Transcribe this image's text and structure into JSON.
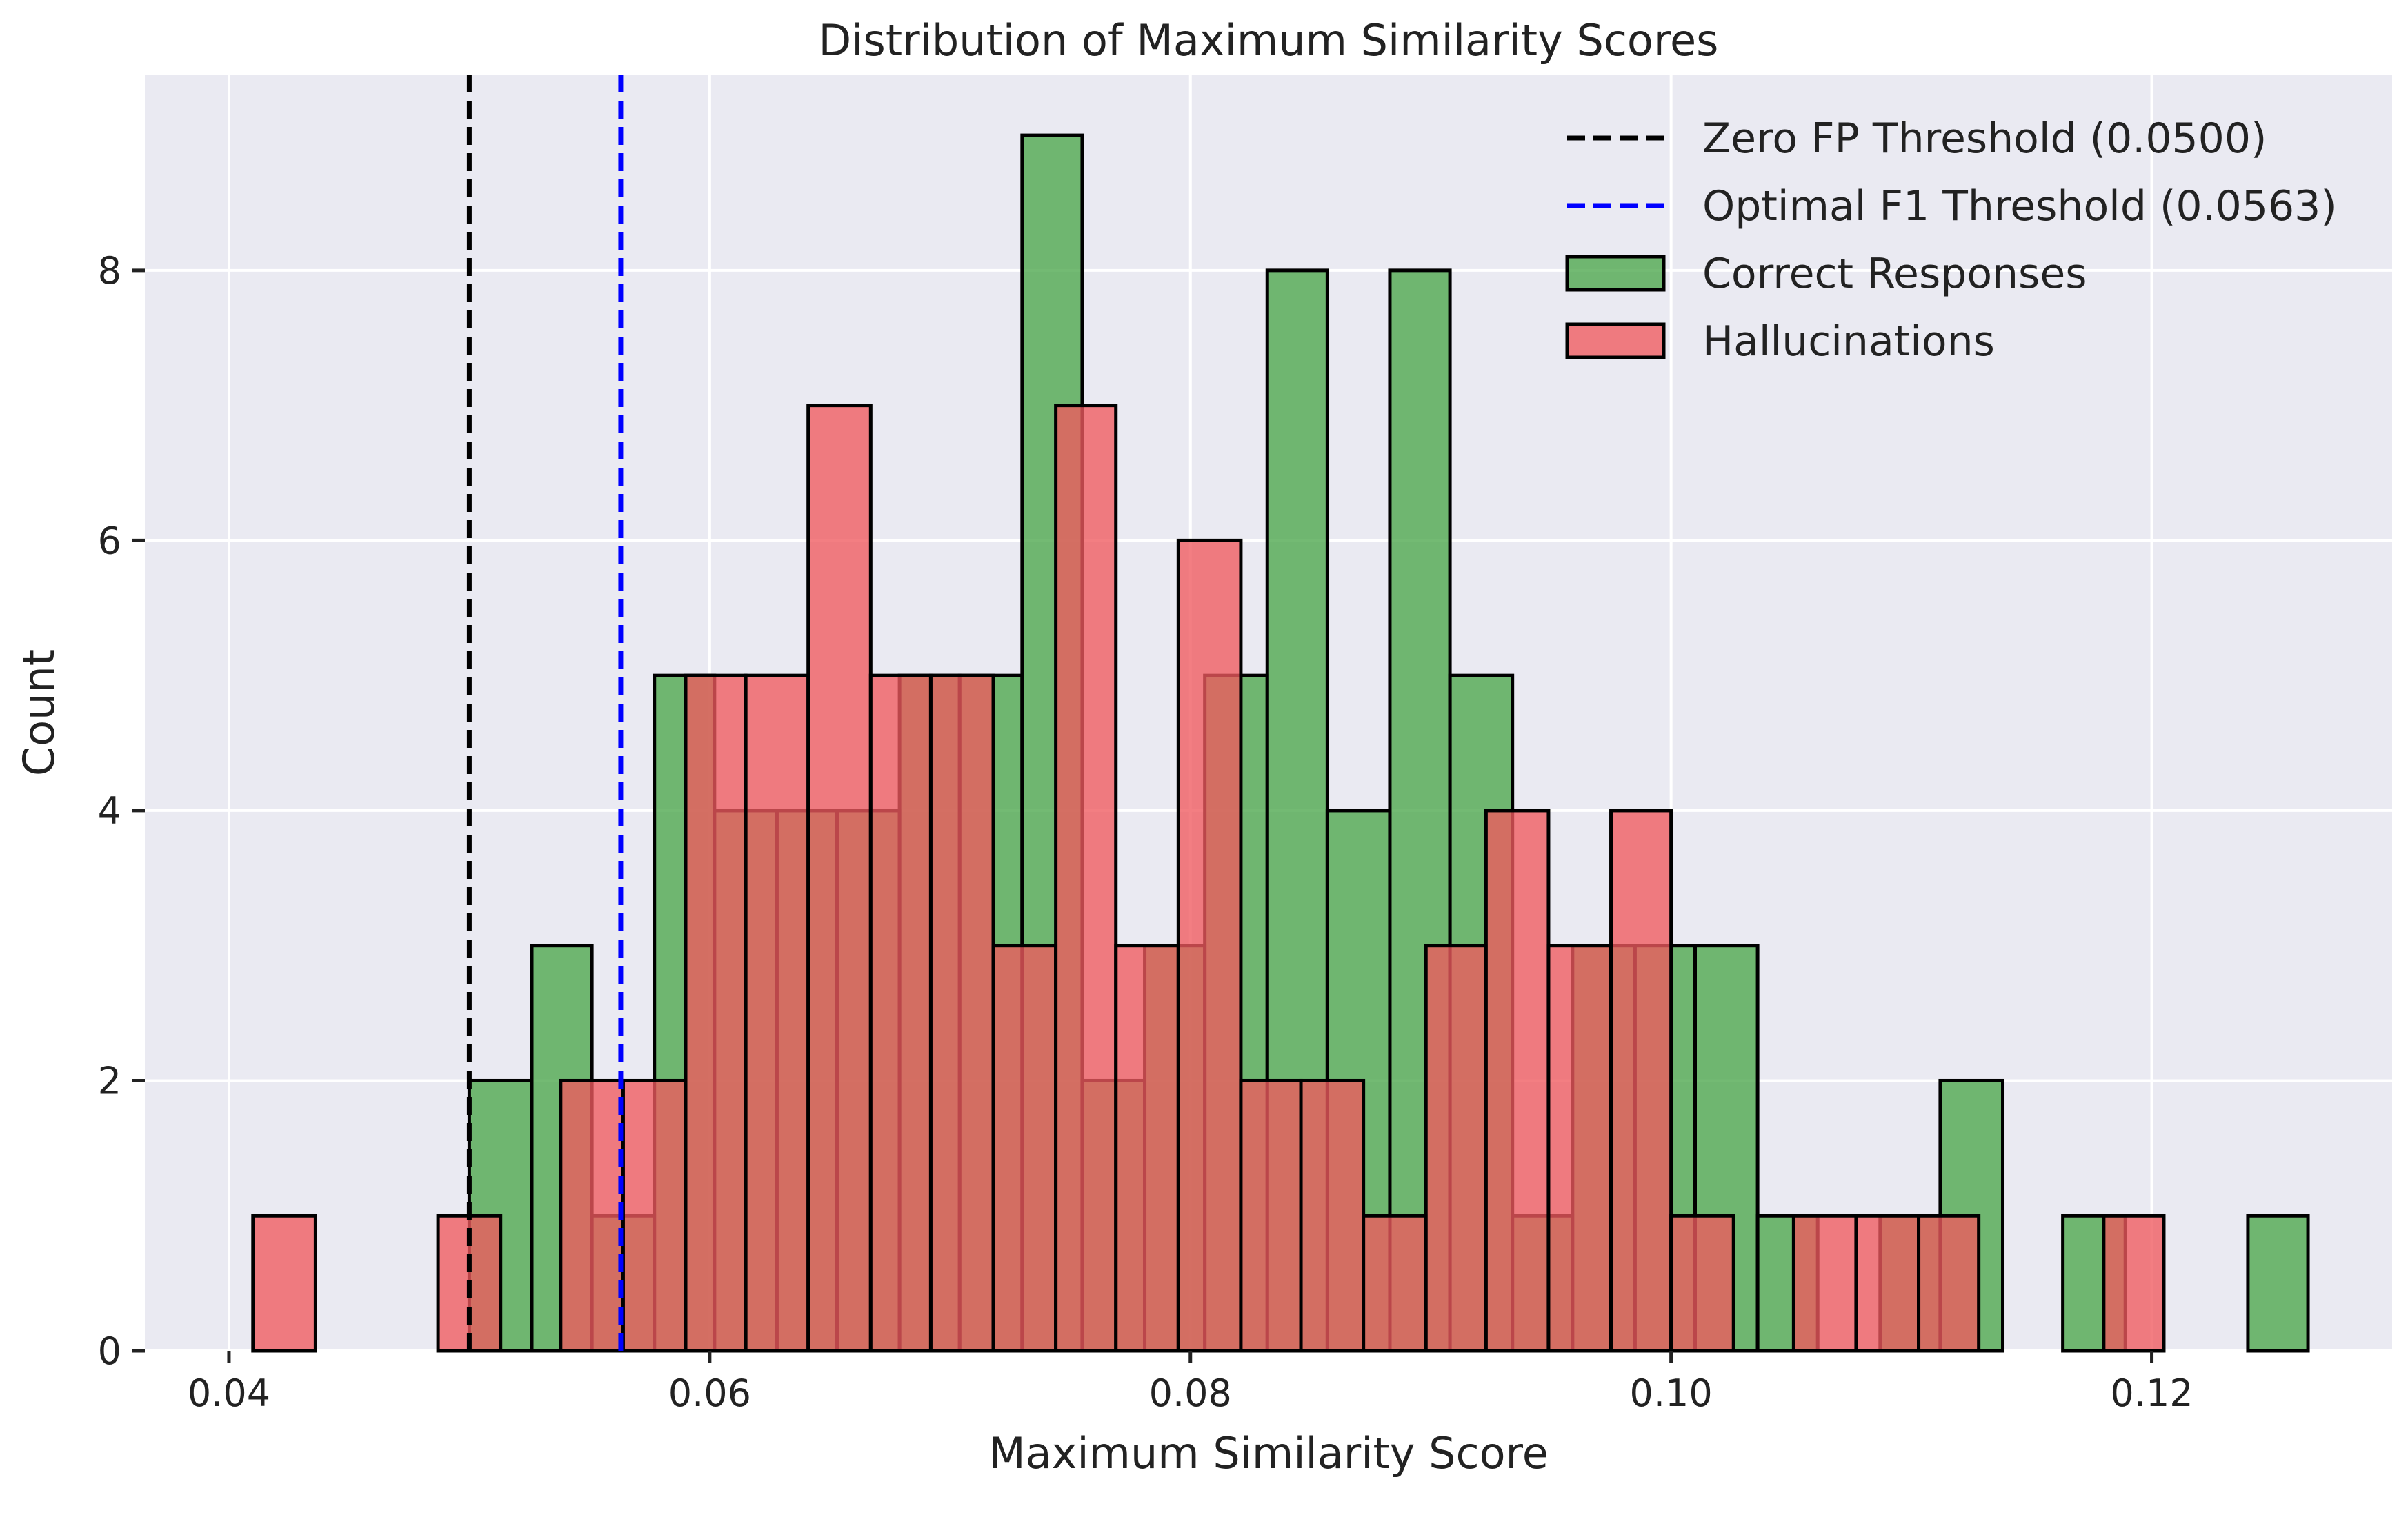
{
  "chart_data": {
    "type": "histogram",
    "title": "Distribution of Maximum Similarity Scores",
    "xlabel": "Maximum Similarity Score",
    "ylabel": "Count",
    "xlim": [
      0.0365,
      0.13
    ],
    "ylim": [
      0,
      9.45
    ],
    "x_ticks": [
      0.04,
      0.06,
      0.08,
      0.1,
      0.12
    ],
    "x_tick_labels": [
      "0.04",
      "0.06",
      "0.08",
      "0.10",
      "0.12"
    ],
    "y_ticks": [
      0,
      2,
      4,
      6,
      8
    ],
    "y_tick_labels": [
      "0",
      "2",
      "4",
      "6",
      "8"
    ],
    "grid": true,
    "legend_position": "top-right",
    "thresholds": [
      {
        "name": "Zero FP Threshold (0.0500)",
        "value": 0.05,
        "color": "#000000",
        "style": "dashed"
      },
      {
        "name": "Optimal F1 Threshold (0.0563)",
        "value": 0.0563,
        "color": "#0000ff",
        "style": "dashed"
      }
    ],
    "series": [
      {
        "name": "Correct Responses",
        "color": "#4ca64c",
        "bins": [
          {
            "x0": 0.05,
            "x1": 0.0526,
            "count": 2
          },
          {
            "x0": 0.0526,
            "x1": 0.0551,
            "count": 3
          },
          {
            "x0": 0.0551,
            "x1": 0.0577,
            "count": 1
          },
          {
            "x0": 0.0577,
            "x1": 0.0602,
            "count": 5
          },
          {
            "x0": 0.0602,
            "x1": 0.0628,
            "count": 4
          },
          {
            "x0": 0.0628,
            "x1": 0.0653,
            "count": 4
          },
          {
            "x0": 0.0653,
            "x1": 0.0679,
            "count": 4
          },
          {
            "x0": 0.0679,
            "x1": 0.0704,
            "count": 5
          },
          {
            "x0": 0.0704,
            "x1": 0.073,
            "count": 5
          },
          {
            "x0": 0.073,
            "x1": 0.0755,
            "count": 9
          },
          {
            "x0": 0.0755,
            "x1": 0.0781,
            "count": 2
          },
          {
            "x0": 0.0781,
            "x1": 0.0806,
            "count": 3
          },
          {
            "x0": 0.0806,
            "x1": 0.0832,
            "count": 5
          },
          {
            "x0": 0.0832,
            "x1": 0.0857,
            "count": 8
          },
          {
            "x0": 0.0857,
            "x1": 0.0883,
            "count": 4
          },
          {
            "x0": 0.0883,
            "x1": 0.0908,
            "count": 8
          },
          {
            "x0": 0.0908,
            "x1": 0.0934,
            "count": 5
          },
          {
            "x0": 0.0934,
            "x1": 0.0959,
            "count": 1
          },
          {
            "x0": 0.0959,
            "x1": 0.0985,
            "count": 3
          },
          {
            "x0": 0.0985,
            "x1": 0.101,
            "count": 3
          },
          {
            "x0": 0.101,
            "x1": 0.1036,
            "count": 3
          },
          {
            "x0": 0.1036,
            "x1": 0.1061,
            "count": 1
          },
          {
            "x0": 0.1087,
            "x1": 0.1112,
            "count": 1
          },
          {
            "x0": 0.1112,
            "x1": 0.1138,
            "count": 2
          },
          {
            "x0": 0.1163,
            "x1": 0.1189,
            "count": 1
          },
          {
            "x0": 0.124,
            "x1": 0.1265,
            "count": 1
          }
        ]
      },
      {
        "name": "Hallucinations",
        "color": "#f05a5f",
        "bins": [
          {
            "x0": 0.041,
            "x1": 0.0436,
            "count": 1
          },
          {
            "x0": 0.0487,
            "x1": 0.0513,
            "count": 1
          },
          {
            "x0": 0.0538,
            "x1": 0.0564,
            "count": 2
          },
          {
            "x0": 0.0564,
            "x1": 0.059,
            "count": 2
          },
          {
            "x0": 0.059,
            "x1": 0.0615,
            "count": 5
          },
          {
            "x0": 0.0615,
            "x1": 0.0641,
            "count": 5
          },
          {
            "x0": 0.0641,
            "x1": 0.0667,
            "count": 7
          },
          {
            "x0": 0.0667,
            "x1": 0.0692,
            "count": 5
          },
          {
            "x0": 0.0692,
            "x1": 0.0718,
            "count": 5
          },
          {
            "x0": 0.0718,
            "x1": 0.0744,
            "count": 3
          },
          {
            "x0": 0.0744,
            "x1": 0.0769,
            "count": 7
          },
          {
            "x0": 0.0769,
            "x1": 0.0795,
            "count": 3
          },
          {
            "x0": 0.0795,
            "x1": 0.0821,
            "count": 6
          },
          {
            "x0": 0.0821,
            "x1": 0.0846,
            "count": 2
          },
          {
            "x0": 0.0846,
            "x1": 0.0872,
            "count": 2
          },
          {
            "x0": 0.0872,
            "x1": 0.0898,
            "count": 1
          },
          {
            "x0": 0.0898,
            "x1": 0.0923,
            "count": 3
          },
          {
            "x0": 0.0923,
            "x1": 0.0949,
            "count": 4
          },
          {
            "x0": 0.0949,
            "x1": 0.0975,
            "count": 3
          },
          {
            "x0": 0.0975,
            "x1": 0.1,
            "count": 4
          },
          {
            "x0": 0.1,
            "x1": 0.1026,
            "count": 1
          },
          {
            "x0": 0.1051,
            "x1": 0.1077,
            "count": 1
          },
          {
            "x0": 0.1077,
            "x1": 0.1103,
            "count": 1
          },
          {
            "x0": 0.1103,
            "x1": 0.1128,
            "count": 1
          },
          {
            "x0": 0.118,
            "x1": 0.1205,
            "count": 1
          }
        ]
      }
    ]
  }
}
